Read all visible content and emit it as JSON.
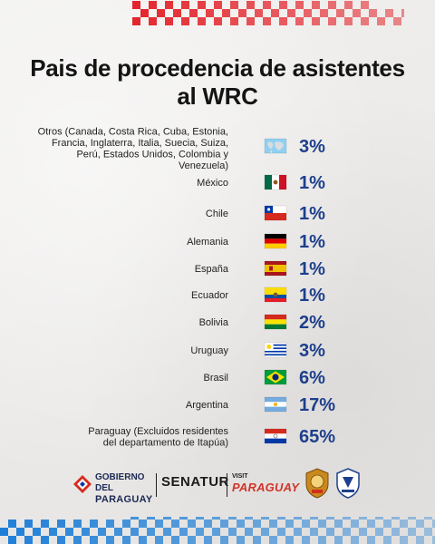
{
  "chart_data": {
    "type": "table",
    "title": "Pais de procedencia de asistentes al WRC",
    "rows": [
      {
        "label_lines": [
          "Otros (Canada, Costa Rica, Cuba, Estonia,",
          "Francia, Inglaterra, Italia, Suecia, Suiza,",
          "Perú, Estados Unidos, Colombia y",
          "Venezuela)"
        ],
        "flag": "world-map-icon",
        "value": 3,
        "display": "3%"
      },
      {
        "label_lines": [
          "México"
        ],
        "flag": "mexico-flag-icon",
        "value": 1,
        "display": "1%"
      },
      {
        "label_lines": [
          "Chile"
        ],
        "flag": "chile-flag-icon",
        "value": 1,
        "display": "1%"
      },
      {
        "label_lines": [
          "Alemania"
        ],
        "flag": "germany-flag-icon",
        "value": 1,
        "display": "1%"
      },
      {
        "label_lines": [
          "España"
        ],
        "flag": "spain-flag-icon",
        "value": 1,
        "display": "1%"
      },
      {
        "label_lines": [
          "Ecuador"
        ],
        "flag": "ecuador-flag-icon",
        "value": 1,
        "display": "1%"
      },
      {
        "label_lines": [
          "Bolivia"
        ],
        "flag": "bolivia-flag-icon",
        "value": 2,
        "display": "2%"
      },
      {
        "label_lines": [
          "Uruguay"
        ],
        "flag": "uruguay-flag-icon",
        "value": 3,
        "display": "3%"
      },
      {
        "label_lines": [
          "Brasil"
        ],
        "flag": "brazil-flag-icon",
        "value": 6,
        "display": "6%"
      },
      {
        "label_lines": [
          "Argentina"
        ],
        "flag": "argentina-flag-icon",
        "value": 17,
        "display": "17%"
      },
      {
        "label_lines": [
          "Paraguay (Excluidos residentes",
          "del departamento de Itapúa)"
        ],
        "flag": "paraguay-flag-icon",
        "value": 65,
        "display": "65%"
      }
    ],
    "colors": {
      "value": "#1d3f8c",
      "checker_red": "#e3262d",
      "checker_blue": "#1f7fd8"
    }
  },
  "footer": {
    "gov_line1": "GOBIERNO DEL",
    "gov_line2": "PARAGUAY",
    "senatur": "SENATUR",
    "visit": "VISIT",
    "paraguay_brand": "PARAGUAY"
  }
}
